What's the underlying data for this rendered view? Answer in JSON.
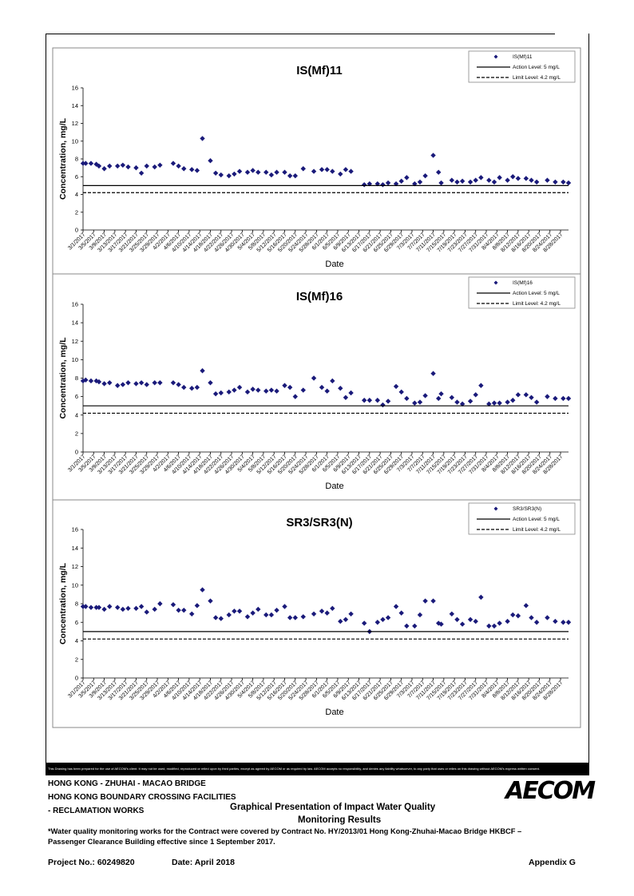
{
  "chart_data": [
    {
      "type": "scatter",
      "title": "IS(Mf)11",
      "xlabel": "Date",
      "ylabel": "Concentration, mg/L",
      "ylim": [
        0,
        16
      ],
      "yticks": [
        0,
        2,
        4,
        6,
        8,
        10,
        12,
        14,
        16
      ],
      "xlim": [
        "2017-03-01",
        "2017-08-31"
      ],
      "xtick_labels": [
        "3/1/2017",
        "3/5/2017",
        "3/9/2017",
        "3/13/2017",
        "3/17/2017",
        "3/21/2017",
        "3/25/2017",
        "3/29/2017",
        "4/2/2017",
        "4/6/2017",
        "4/10/2017",
        "4/14/2017",
        "4/18/2017",
        "4/22/2017",
        "4/26/2017",
        "4/30/2017",
        "5/4/2017",
        "5/8/2017",
        "5/12/2017",
        "5/16/2017",
        "5/20/2017",
        "5/24/2017",
        "5/28/2017",
        "6/1/2017",
        "6/5/2017",
        "6/9/2017",
        "6/13/2017",
        "6/17/2017",
        "6/21/2017",
        "6/25/2017",
        "6/29/2017",
        "7/3/2017",
        "7/7/2017",
        "7/11/2017",
        "7/15/2017",
        "7/19/2017",
        "7/23/2017",
        "7/27/2017",
        "7/31/2017",
        "8/4/2017",
        "8/8/2017",
        "8/12/2017",
        "8/16/2017",
        "8/20/2017",
        "8/24/2017",
        "8/28/2017"
      ],
      "grid": false,
      "legend_position": "top-right",
      "series": [
        {
          "name": "IS(Mf)11",
          "marker": "diamond",
          "color": "#1a1a7a",
          "x": [
            "2017-03-01",
            "2017-03-02",
            "2017-03-04",
            "2017-03-06",
            "2017-03-07",
            "2017-03-09",
            "2017-03-11",
            "2017-03-14",
            "2017-03-16",
            "2017-03-18",
            "2017-03-21",
            "2017-03-23",
            "2017-03-25",
            "2017-03-28",
            "2017-03-30",
            "2017-04-04",
            "2017-04-06",
            "2017-04-08",
            "2017-04-11",
            "2017-04-13",
            "2017-04-15",
            "2017-04-18",
            "2017-04-20",
            "2017-04-22",
            "2017-04-25",
            "2017-04-27",
            "2017-04-29",
            "2017-05-02",
            "2017-05-04",
            "2017-05-06",
            "2017-05-09",
            "2017-05-11",
            "2017-05-13",
            "2017-05-16",
            "2017-05-18",
            "2017-05-20",
            "2017-05-23",
            "2017-05-27",
            "2017-05-30",
            "2017-06-01",
            "2017-06-03",
            "2017-06-06",
            "2017-06-08",
            "2017-06-10",
            "2017-06-15",
            "2017-06-17",
            "2017-06-20",
            "2017-06-22",
            "2017-06-24",
            "2017-06-27",
            "2017-06-29",
            "2017-07-01",
            "2017-07-04",
            "2017-07-06",
            "2017-07-08",
            "2017-07-11",
            "2017-07-13",
            "2017-07-14",
            "2017-07-18",
            "2017-07-20",
            "2017-07-22",
            "2017-07-25",
            "2017-07-27",
            "2017-07-29",
            "2017-08-01",
            "2017-08-03",
            "2017-08-05",
            "2017-08-08",
            "2017-08-10",
            "2017-08-12",
            "2017-08-15",
            "2017-08-17",
            "2017-08-19",
            "2017-08-23",
            "2017-08-26",
            "2017-08-29",
            "2017-08-31"
          ],
          "y": [
            7.5,
            7.5,
            7.5,
            7.4,
            7.2,
            6.9,
            7.2,
            7.2,
            7.3,
            7.1,
            7.0,
            6.4,
            7.2,
            7.1,
            7.3,
            7.5,
            7.2,
            6.9,
            6.8,
            6.7,
            10.3,
            7.8,
            6.4,
            6.2,
            6.1,
            6.3,
            6.6,
            6.5,
            6.7,
            6.5,
            6.5,
            6.2,
            6.5,
            6.5,
            6.1,
            6.1,
            6.9,
            6.6,
            6.8,
            6.8,
            6.6,
            6.3,
            6.8,
            6.6,
            5.1,
            5.2,
            5.2,
            5.1,
            5.3,
            5.2,
            5.5,
            5.9,
            5.2,
            5.4,
            6.1,
            8.4,
            6.5,
            5.3,
            5.6,
            5.4,
            5.5,
            5.4,
            5.6,
            5.9,
            5.6,
            5.4,
            5.9,
            5.6,
            6.0,
            5.8,
            5.8,
            5.6,
            5.4,
            5.6,
            5.4,
            5.4,
            5.3
          ]
        },
        {
          "name": "Action Level: 5 mg/L",
          "value": 5,
          "style": "solid"
        },
        {
          "name": "Limit Level: 4.2 mg/L",
          "value": 4.2,
          "style": "dashed"
        }
      ]
    },
    {
      "type": "scatter",
      "title": "IS(Mf)16",
      "xlabel": "Date",
      "ylabel": "Concentration, mg/L",
      "ylim": [
        0,
        16
      ],
      "yticks": [
        0,
        2,
        4,
        6,
        8,
        10,
        12,
        14,
        16
      ],
      "xlim": [
        "2017-03-01",
        "2017-08-31"
      ],
      "xtick_labels": [
        "3/1/2017",
        "3/5/2017",
        "3/9/2017",
        "3/13/2017",
        "3/17/2017",
        "3/21/2017",
        "3/25/2017",
        "3/29/2017",
        "4/2/2017",
        "4/6/2017",
        "4/10/2017",
        "4/14/2017",
        "4/18/2017",
        "4/22/2017",
        "4/26/2017",
        "4/30/2017",
        "5/4/2017",
        "5/8/2017",
        "5/12/2017",
        "5/16/2017",
        "5/20/2017",
        "5/24/2017",
        "5/28/2017",
        "6/1/2017",
        "6/5/2017",
        "6/9/2017",
        "6/13/2017",
        "6/17/2017",
        "6/21/2017",
        "6/25/2017",
        "6/29/2017",
        "7/3/2017",
        "7/7/2017",
        "7/11/2017",
        "7/15/2017",
        "7/19/2017",
        "7/23/2017",
        "7/27/2017",
        "7/31/2017",
        "8/4/2017",
        "8/8/2017",
        "8/12/2017",
        "8/16/2017",
        "8/20/2017",
        "8/24/2017",
        "8/28/2017"
      ],
      "grid": false,
      "legend_position": "top-right",
      "series": [
        {
          "name": "IS(Mf)16",
          "marker": "diamond",
          "color": "#1a1a7a",
          "x": [
            "2017-03-01",
            "2017-03-02",
            "2017-03-04",
            "2017-03-06",
            "2017-03-07",
            "2017-03-09",
            "2017-03-11",
            "2017-03-14",
            "2017-03-16",
            "2017-03-18",
            "2017-03-21",
            "2017-03-23",
            "2017-03-25",
            "2017-03-28",
            "2017-03-30",
            "2017-04-04",
            "2017-04-06",
            "2017-04-08",
            "2017-04-11",
            "2017-04-13",
            "2017-04-15",
            "2017-04-18",
            "2017-04-20",
            "2017-04-22",
            "2017-04-25",
            "2017-04-27",
            "2017-04-29",
            "2017-05-02",
            "2017-05-04",
            "2017-05-06",
            "2017-05-09",
            "2017-05-11",
            "2017-05-13",
            "2017-05-16",
            "2017-05-18",
            "2017-05-20",
            "2017-05-23",
            "2017-05-27",
            "2017-05-30",
            "2017-06-01",
            "2017-06-03",
            "2017-06-06",
            "2017-06-08",
            "2017-06-10",
            "2017-06-15",
            "2017-06-17",
            "2017-06-20",
            "2017-06-22",
            "2017-06-24",
            "2017-06-27",
            "2017-06-29",
            "2017-07-01",
            "2017-07-04",
            "2017-07-06",
            "2017-07-08",
            "2017-07-11",
            "2017-07-13",
            "2017-07-14",
            "2017-07-18",
            "2017-07-20",
            "2017-07-22",
            "2017-07-25",
            "2017-07-27",
            "2017-07-29",
            "2017-08-01",
            "2017-08-03",
            "2017-08-05",
            "2017-08-08",
            "2017-08-10",
            "2017-08-12",
            "2017-08-15",
            "2017-08-17",
            "2017-08-19",
            "2017-08-23",
            "2017-08-26",
            "2017-08-29",
            "2017-08-31"
          ],
          "y": [
            7.7,
            7.8,
            7.7,
            7.7,
            7.6,
            7.4,
            7.5,
            7.2,
            7.3,
            7.5,
            7.4,
            7.5,
            7.3,
            7.5,
            7.5,
            7.5,
            7.3,
            7.0,
            6.9,
            7.0,
            8.8,
            7.5,
            6.3,
            6.4,
            6.5,
            6.7,
            7.0,
            6.5,
            6.8,
            6.7,
            6.6,
            6.7,
            6.6,
            7.2,
            7.0,
            6.0,
            6.7,
            8.0,
            7.0,
            6.6,
            7.7,
            6.9,
            5.9,
            6.4,
            5.6,
            5.6,
            5.6,
            5.1,
            5.5,
            7.1,
            6.5,
            5.8,
            5.3,
            5.4,
            6.1,
            8.5,
            5.8,
            6.3,
            5.9,
            5.4,
            5.2,
            5.5,
            6.2,
            7.2,
            5.2,
            5.3,
            5.3,
            5.4,
            5.6,
            6.2,
            6.2,
            5.9,
            5.4,
            6.0,
            5.8,
            5.8,
            5.8
          ]
        },
        {
          "name": "Action Level: 5 mg/L",
          "value": 5,
          "style": "solid"
        },
        {
          "name": "Limit Level: 4.2 mg/L",
          "value": 4.2,
          "style": "dashed"
        }
      ]
    },
    {
      "type": "scatter",
      "title": "SR3/SR3(N)",
      "xlabel": "Date",
      "ylabel": "Concentration, mg/L",
      "ylim": [
        0,
        16
      ],
      "yticks": [
        0,
        2,
        4,
        6,
        8,
        10,
        12,
        14,
        16
      ],
      "xlim": [
        "2017-03-01",
        "2017-08-31"
      ],
      "xtick_labels": [
        "3/1/2017",
        "3/5/2017",
        "3/9/2017",
        "3/13/2017",
        "3/17/2017",
        "3/21/2017",
        "3/25/2017",
        "3/29/2017",
        "4/2/2017",
        "4/6/2017",
        "4/10/2017",
        "4/14/2017",
        "4/18/2017",
        "4/22/2017",
        "4/26/2017",
        "4/30/2017",
        "5/4/2017",
        "5/8/2017",
        "5/12/2017",
        "5/16/2017",
        "5/20/2017",
        "5/24/2017",
        "5/28/2017",
        "6/1/2017",
        "6/5/2017",
        "6/9/2017",
        "6/13/2017",
        "6/17/2017",
        "6/21/2017",
        "6/25/2017",
        "6/29/2017",
        "7/3/2017",
        "7/7/2017",
        "7/11/2017",
        "7/15/2017",
        "7/19/2017",
        "7/23/2017",
        "7/27/2017",
        "7/31/2017",
        "8/4/2017",
        "8/8/2017",
        "8/12/2017",
        "8/16/2017",
        "8/20/2017",
        "8/24/2017",
        "8/28/2017"
      ],
      "grid": false,
      "legend_position": "top-right",
      "series": [
        {
          "name": "SR3/SR3(N)",
          "marker": "diamond",
          "color": "#1a1a7a",
          "x": [
            "2017-03-01",
            "2017-03-02",
            "2017-03-04",
            "2017-03-06",
            "2017-03-07",
            "2017-03-09",
            "2017-03-11",
            "2017-03-14",
            "2017-03-16",
            "2017-03-18",
            "2017-03-21",
            "2017-03-23",
            "2017-03-25",
            "2017-03-28",
            "2017-03-30",
            "2017-04-04",
            "2017-04-06",
            "2017-04-08",
            "2017-04-11",
            "2017-04-13",
            "2017-04-15",
            "2017-04-18",
            "2017-04-20",
            "2017-04-22",
            "2017-04-25",
            "2017-04-27",
            "2017-04-29",
            "2017-05-02",
            "2017-05-04",
            "2017-05-06",
            "2017-05-09",
            "2017-05-11",
            "2017-05-13",
            "2017-05-16",
            "2017-05-18",
            "2017-05-20",
            "2017-05-23",
            "2017-05-27",
            "2017-05-30",
            "2017-06-01",
            "2017-06-03",
            "2017-06-06",
            "2017-06-08",
            "2017-06-10",
            "2017-06-15",
            "2017-06-17",
            "2017-06-20",
            "2017-06-22",
            "2017-06-24",
            "2017-06-27",
            "2017-06-29",
            "2017-07-01",
            "2017-07-04",
            "2017-07-06",
            "2017-07-08",
            "2017-07-11",
            "2017-07-13",
            "2017-07-14",
            "2017-07-18",
            "2017-07-20",
            "2017-07-22",
            "2017-07-25",
            "2017-07-27",
            "2017-07-29",
            "2017-08-01",
            "2017-08-03",
            "2017-08-05",
            "2017-08-08",
            "2017-08-10",
            "2017-08-12",
            "2017-08-15",
            "2017-08-17",
            "2017-08-19",
            "2017-08-23",
            "2017-08-26",
            "2017-08-29",
            "2017-08-31"
          ],
          "y": [
            7.7,
            7.7,
            7.6,
            7.6,
            7.6,
            7.4,
            7.7,
            7.6,
            7.4,
            7.5,
            7.5,
            7.7,
            7.1,
            7.4,
            8.0,
            7.9,
            7.3,
            7.3,
            6.9,
            7.8,
            9.5,
            8.3,
            6.5,
            6.4,
            6.8,
            7.2,
            7.2,
            6.6,
            7.0,
            7.4,
            6.8,
            6.8,
            7.3,
            7.7,
            6.5,
            6.5,
            6.6,
            6.9,
            7.2,
            7.0,
            7.5,
            6.1,
            6.3,
            6.9,
            5.9,
            5.0,
            6.0,
            6.3,
            6.5,
            7.7,
            7.0,
            5.6,
            5.6,
            6.8,
            8.3,
            8.3,
            5.9,
            5.8,
            6.9,
            6.3,
            5.8,
            6.3,
            6.1,
            8.7,
            5.6,
            5.6,
            5.9,
            6.1,
            6.8,
            6.7,
            7.8,
            6.5,
            6.0,
            6.5,
            6.1,
            6.0,
            6.0
          ]
        },
        {
          "name": "Action Level: 5 mg/L",
          "value": 5,
          "style": "solid"
        },
        {
          "name": "Limit Level: 4.2 mg/L",
          "value": 4.2,
          "style": "dashed"
        }
      ]
    }
  ],
  "footer": {
    "disclaimer": "This Drawing has been prepared for the use of AECOM's client. It may not be used, modified, reproduced or relied upon by third parties, except as agreed by AECOM or as required by law. AECOM accepts no responsibility, and denies any liability whatsoever, to any party that uses or relies on this drawing without AECOM's express written consent.",
    "project_line1": "HONG KONG - ZHUHAI - MACAO BRIDGE",
    "project_line2": "HONG KONG BOUNDARY CROSSING FACILITIES",
    "project_line3": "- RECLAMATION WORKS",
    "drawing_title_line1": "Graphical Presentation of Impact Water Quality",
    "drawing_title_line2": "Monitoring Results",
    "note_line1": "*Water quality monitoring works for the Contract were covered by Contract No. HY/2013/01 Hong Kong-Zhuhai-Macao Bridge HKBCF –",
    "note_line2": "Passenger Clearance Building effective since 1 September 2017.",
    "project_no": "Project No.: 60249820",
    "date": "Date: April 2018",
    "appendix": "Appendix G",
    "logo_text": "AECOM"
  }
}
